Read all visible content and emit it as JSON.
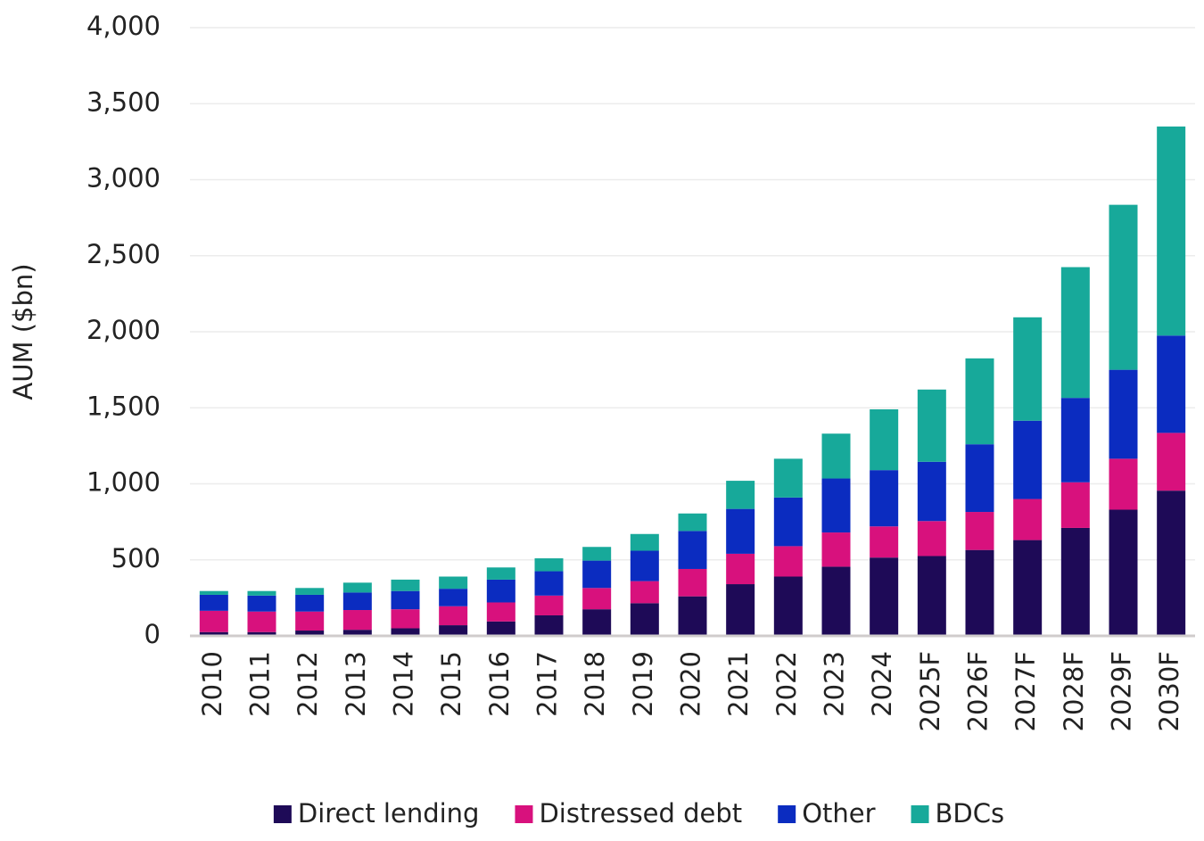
{
  "chart_data": {
    "type": "stacked-bar",
    "y_label": "AUM ($bn)",
    "categories": [
      "2010",
      "2011",
      "2012",
      "2013",
      "2014",
      "2015",
      "2016",
      "2017",
      "2018",
      "2019",
      "2020",
      "2021",
      "2022",
      "2023",
      "2024",
      "2025F",
      "2026F",
      "2027F",
      "2028F",
      "2029F",
      "2030F"
    ],
    "series": [
      {
        "name": "Direct lending",
        "color": "#1e0a57",
        "values": [
          25,
          25,
          35,
          40,
          50,
          70,
          95,
          135,
          175,
          215,
          260,
          340,
          390,
          455,
          515,
          525,
          565,
          630,
          710,
          830,
          955
        ]
      },
      {
        "name": "Distressed debt",
        "color": "#d8117d",
        "values": [
          140,
          135,
          125,
          130,
          125,
          125,
          125,
          130,
          140,
          145,
          180,
          200,
          200,
          225,
          205,
          230,
          250,
          270,
          300,
          335,
          380
        ]
      },
      {
        "name": "Other",
        "color": "#0b2cc0",
        "values": [
          105,
          105,
          110,
          115,
          120,
          115,
          150,
          160,
          180,
          200,
          250,
          295,
          320,
          355,
          370,
          390,
          445,
          515,
          555,
          585,
          640
        ]
      },
      {
        "name": "BDCs",
        "color": "#17a99a",
        "values": [
          25,
          30,
          45,
          65,
          75,
          80,
          80,
          85,
          90,
          110,
          115,
          185,
          255,
          295,
          400,
          475,
          565,
          680,
          860,
          1085,
          1375
        ]
      }
    ],
    "ylim": [
      0,
      4000
    ],
    "yticks": [
      0,
      500,
      {
        "value": 1000,
        "label": "1,000"
      },
      {
        "value": 1500,
        "label": "1,500"
      },
      {
        "value": 2000,
        "label": "2,000"
      },
      {
        "value": 2500,
        "label": "2,500"
      },
      {
        "value": 3000,
        "label": "3,000"
      },
      {
        "value": 3500,
        "label": "3,500"
      },
      {
        "value": 4000,
        "label": "4,000"
      }
    ],
    "grid": true,
    "legend": "bottom"
  }
}
